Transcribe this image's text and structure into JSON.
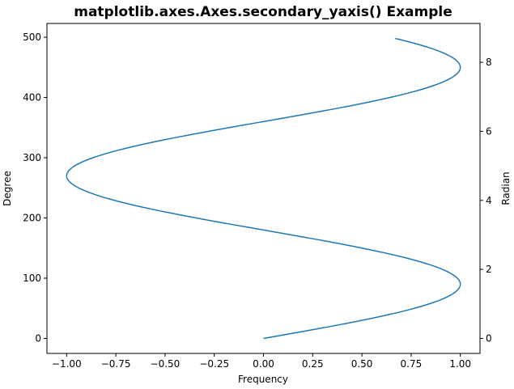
{
  "chart_data": {
    "type": "line",
    "title": "matplotlib.axes.Axes.secondary_yaxis() Example",
    "xlabel": "Frequency",
    "ylabel": "Degree",
    "secondary_ylabel": "Radian",
    "xlim": [
      -1.1,
      1.1
    ],
    "ylim": [
      -24.9,
      522.9
    ],
    "x_ticks": [
      "−1.00",
      "−0.75",
      "−0.50",
      "−0.25",
      "0.00",
      "0.25",
      "0.50",
      "0.75",
      "1.00"
    ],
    "y_ticks": [
      "0",
      "100",
      "200",
      "300",
      "400",
      "500"
    ],
    "secondary_y_ticks": [
      "0",
      "2",
      "4",
      "6",
      "8"
    ],
    "grid": false,
    "series": [
      {
        "function": "x = sin(radians(y))",
        "y_start": 0,
        "y_end": 498,
        "color": "#1f77b4"
      }
    ]
  }
}
